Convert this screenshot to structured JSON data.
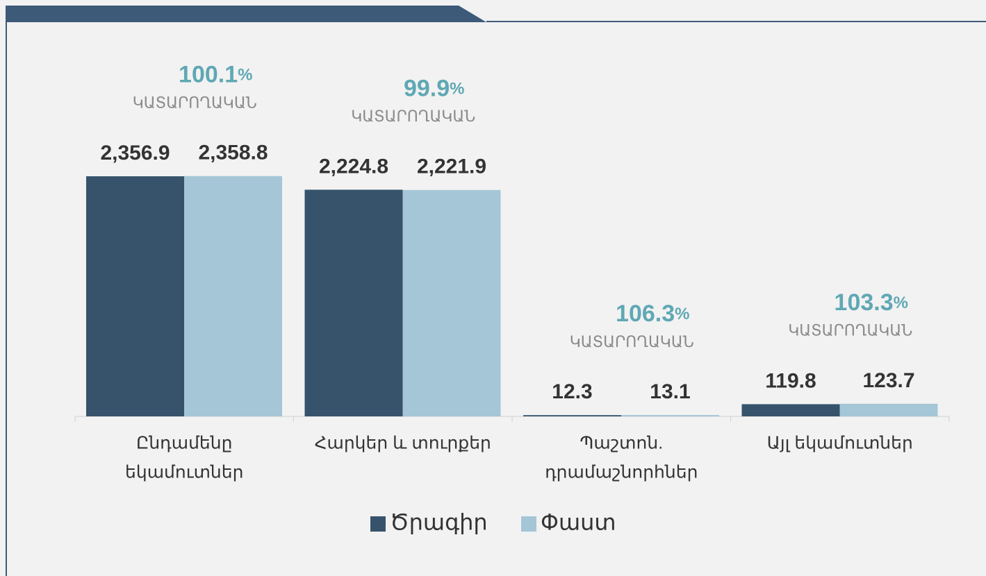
{
  "chart_data": {
    "type": "bar",
    "categories": [
      [
        "Ընդամենը",
        "եկամուտներ"
      ],
      [
        "Հարկեր և տուրքեր"
      ],
      [
        "Պաշտոն.",
        "դրամաշնորհներ"
      ],
      [
        "Այլ եկամուտներ"
      ]
    ],
    "series": [
      {
        "name": "Ծրագիր",
        "color": "#36536b",
        "values": [
          2356.9,
          2224.8,
          12.3,
          119.8
        ],
        "value_labels": [
          "2,356.9",
          "2,224.8",
          "12.3",
          "119.8"
        ]
      },
      {
        "name": "Փաստ",
        "color": "#a4c6d6",
        "values": [
          2358.8,
          2221.9,
          13.1,
          123.7
        ],
        "value_labels": [
          "2,358.8",
          "2,221.9",
          "13.1",
          "123.7"
        ]
      }
    ],
    "annotations": [
      100.1,
      99.9,
      106.3,
      103.3
    ],
    "annotation_unit": "%",
    "annotation_caption": "ԿԱՏԱՐՈՂԱԿԱՆ",
    "ylim": [
      0,
      2500
    ],
    "legend": "bottom"
  }
}
